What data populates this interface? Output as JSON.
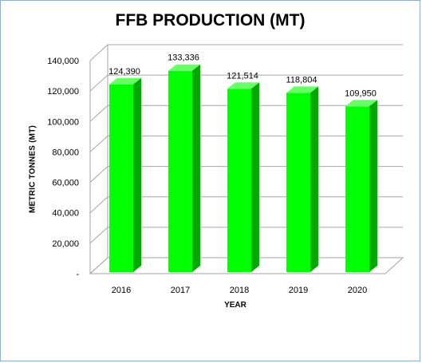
{
  "chart_data": {
    "type": "bar",
    "title": "FFB PRODUCTION (MT)",
    "xlabel": "YEAR",
    "ylabel": "METRIC TONNES (MT)",
    "categories": [
      "2016",
      "2017",
      "2018",
      "2019",
      "2020"
    ],
    "values": [
      124390,
      133336,
      121514,
      118804,
      109950
    ],
    "data_labels": [
      "124,390",
      "133,336",
      "121,514",
      "118,804",
      "109,950"
    ],
    "ylim": [
      0,
      140000
    ],
    "yticks": [
      0,
      20000,
      40000,
      60000,
      80000,
      100000,
      120000,
      140000
    ],
    "ytick_labels": [
      "-",
      "20,000",
      "40,000",
      "60,000",
      "80,000",
      "100,000",
      "120,000",
      "140,000"
    ],
    "grid": true,
    "legend": "none",
    "colors": {
      "bar_front": "#00ff00",
      "bar_side": "#00a800",
      "bar_top": "#66ff66",
      "grid": "#a6a6a6",
      "frame": "#8eaed3"
    }
  }
}
